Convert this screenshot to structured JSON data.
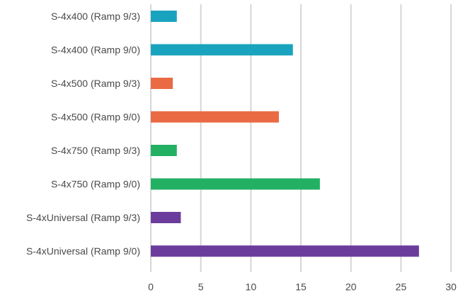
{
  "chart_data": {
    "type": "bar",
    "orientation": "horizontal",
    "categories": [
      "S-4x400 (Ramp 9/3)",
      "S-4x400 (Ramp 9/0)",
      "S-4x500 (Ramp 9/3)",
      "S-4x500 (Ramp 9/0)",
      "S-4x750 (Ramp 9/3)",
      "S-4x750 (Ramp 9/0)",
      "S-4xUniversal (Ramp 9/3)",
      "S-4xUniversal (Ramp 9/0)"
    ],
    "values": [
      2.6,
      14.2,
      2.2,
      12.8,
      2.6,
      16.9,
      3.0,
      26.8
    ],
    "bar_colors": [
      "#1aa3be",
      "#1aa3be",
      "#ea6a44",
      "#ea6a44",
      "#23b063",
      "#23b063",
      "#6b3c9c",
      "#6b3c9c"
    ],
    "xlim": [
      0,
      30
    ],
    "x_ticks": [
      "0",
      "5",
      "10",
      "15",
      "20",
      "25",
      "30"
    ],
    "grid": true,
    "legend": "none"
  }
}
